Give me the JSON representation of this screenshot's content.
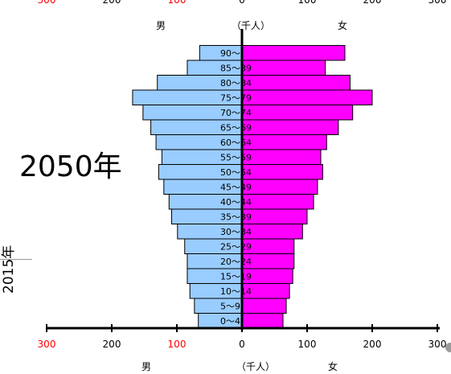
{
  "year_label": "2050年",
  "side_label": "2015年",
  "gender_labels": {
    "male": "男",
    "unit": "（千人）",
    "female": "女"
  },
  "colors": {
    "male_fill": "#99ccff",
    "female_fill": "#ff00ff",
    "tick_red": "#ff0000",
    "axis_black": "#000000"
  },
  "chart_data": {
    "type": "bar",
    "orientation": "horizontal-population-pyramid",
    "categories": [
      "0～4",
      "5～9",
      "10～14",
      "15～19",
      "20～24",
      "25～29",
      "30～34",
      "35～39",
      "40～44",
      "45～49",
      "50～54",
      "55～59",
      "60～64",
      "65～69",
      "70～74",
      "75～79",
      "80～84",
      "85～89",
      "90～"
    ],
    "series": [
      {
        "name": "男",
        "values": [
          67,
          73,
          80,
          84,
          84,
          88,
          99,
          108,
          112,
          120,
          128,
          123,
          132,
          140,
          152,
          168,
          130,
          84,
          65
        ]
      },
      {
        "name": "女",
        "values": [
          63,
          68,
          73,
          78,
          80,
          80,
          93,
          100,
          110,
          116,
          124,
          121,
          130,
          148,
          170,
          200,
          166,
          128,
          158
        ]
      }
    ],
    "xlim": [
      -300,
      300
    ],
    "x_ticks": [
      {
        "value": -300,
        "label": "300",
        "color": "red"
      },
      {
        "value": -200,
        "label": "200",
        "color": "black"
      },
      {
        "value": -100,
        "label": "100",
        "color": "red"
      },
      {
        "value": 0,
        "label": "0",
        "color": "black"
      },
      {
        "value": 100,
        "label": "100",
        "color": "black"
      },
      {
        "value": 200,
        "label": "200",
        "color": "black"
      },
      {
        "value": 300,
        "label": "300",
        "color": "black"
      }
    ]
  }
}
